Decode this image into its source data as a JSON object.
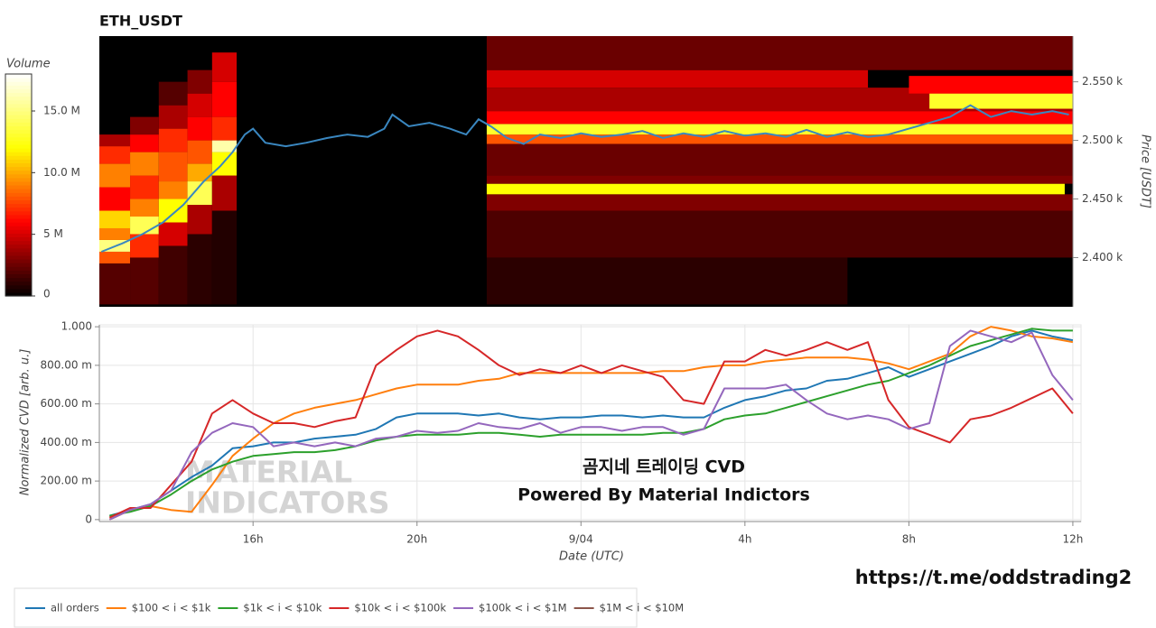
{
  "chart_data": [
    {
      "type": "heatmap",
      "title": "ETH_USDT",
      "colorbar_label": "Volume",
      "ylabel": "Price [USDT]",
      "colormap": "hot",
      "zlim": [
        0,
        18
      ],
      "zticks": [
        0,
        {
          "value": 5,
          "label": "5 M"
        },
        {
          "value": 10,
          "label": "10.0 M"
        },
        {
          "value": 15,
          "label": "15.0 M"
        }
      ],
      "xlim": [
        12.25,
        36.0
      ],
      "ylim": [
        2358,
        2589
      ],
      "yticks": [
        {
          "value": 2400,
          "label": "2.400 k"
        },
        {
          "value": 2450,
          "label": "2.450 k"
        },
        {
          "value": 2500,
          "label": "2.500 k"
        },
        {
          "value": 2550,
          "label": "2.550 k"
        }
      ],
      "cells": [
        {
          "x": [
            12.25,
            13.0
          ],
          "y": [
            2360,
            2395
          ],
          "value": 2
        },
        {
          "x": [
            12.25,
            13.0
          ],
          "y": [
            2395,
            2405
          ],
          "value": 8
        },
        {
          "x": [
            12.25,
            13.0
          ],
          "y": [
            2405,
            2415
          ],
          "value": 15
        },
        {
          "x": [
            12.25,
            13.0
          ],
          "y": [
            2415,
            2425
          ],
          "value": 9
        },
        {
          "x": [
            12.25,
            13.0
          ],
          "y": [
            2425,
            2440
          ],
          "value": 11
        },
        {
          "x": [
            12.25,
            13.0
          ],
          "y": [
            2440,
            2460
          ],
          "value": 6
        },
        {
          "x": [
            12.25,
            13.0
          ],
          "y": [
            2460,
            2480
          ],
          "value": 9
        },
        {
          "x": [
            12.25,
            13.0
          ],
          "y": [
            2480,
            2495
          ],
          "value": 7
        },
        {
          "x": [
            12.25,
            13.0
          ],
          "y": [
            2495,
            2505
          ],
          "value": 4
        },
        {
          "x": [
            13.0,
            13.7
          ],
          "y": [
            2360,
            2400
          ],
          "value": 2
        },
        {
          "x": [
            13.0,
            13.7
          ],
          "y": [
            2400,
            2420
          ],
          "value": 7
        },
        {
          "x": [
            13.0,
            13.7
          ],
          "y": [
            2420,
            2435
          ],
          "value": 14
        },
        {
          "x": [
            13.0,
            13.7
          ],
          "y": [
            2435,
            2450
          ],
          "value": 9
        },
        {
          "x": [
            13.0,
            13.7
          ],
          "y": [
            2450,
            2470
          ],
          "value": 7
        },
        {
          "x": [
            13.0,
            13.7
          ],
          "y": [
            2470,
            2490
          ],
          "value": 9
        },
        {
          "x": [
            13.0,
            13.7
          ],
          "y": [
            2490,
            2505
          ],
          "value": 6
        },
        {
          "x": [
            13.0,
            13.7
          ],
          "y": [
            2505,
            2520
          ],
          "value": 3
        },
        {
          "x": [
            13.7,
            14.4
          ],
          "y": [
            2360,
            2410
          ],
          "value": 1.5
        },
        {
          "x": [
            13.7,
            14.4
          ],
          "y": [
            2410,
            2430
          ],
          "value": 5
        },
        {
          "x": [
            13.7,
            14.4
          ],
          "y": [
            2430,
            2450
          ],
          "value": 12
        },
        {
          "x": [
            13.7,
            14.4
          ],
          "y": [
            2450,
            2465
          ],
          "value": 9
        },
        {
          "x": [
            13.7,
            14.4
          ],
          "y": [
            2465,
            2490
          ],
          "value": 8
        },
        {
          "x": [
            13.7,
            14.4
          ],
          "y": [
            2490,
            2510
          ],
          "value": 7
        },
        {
          "x": [
            13.7,
            14.4
          ],
          "y": [
            2510,
            2530
          ],
          "value": 4
        },
        {
          "x": [
            13.7,
            14.4
          ],
          "y": [
            2530,
            2550
          ],
          "value": 2
        },
        {
          "x": [
            14.4,
            15.0
          ],
          "y": [
            2360,
            2420
          ],
          "value": 1
        },
        {
          "x": [
            14.4,
            15.0
          ],
          "y": [
            2420,
            2445
          ],
          "value": 4
        },
        {
          "x": [
            14.4,
            15.0
          ],
          "y": [
            2445,
            2465
          ],
          "value": 14
        },
        {
          "x": [
            14.4,
            15.0
          ],
          "y": [
            2465,
            2480
          ],
          "value": 10
        },
        {
          "x": [
            14.4,
            15.0
          ],
          "y": [
            2480,
            2500
          ],
          "value": 8
        },
        {
          "x": [
            14.4,
            15.0
          ],
          "y": [
            2500,
            2520
          ],
          "value": 6
        },
        {
          "x": [
            14.4,
            15.0
          ],
          "y": [
            2520,
            2540
          ],
          "value": 5
        },
        {
          "x": [
            14.4,
            15.0
          ],
          "y": [
            2540,
            2560
          ],
          "value": 3
        },
        {
          "x": [
            15.0,
            15.6
          ],
          "y": [
            2360,
            2440
          ],
          "value": 0.8
        },
        {
          "x": [
            15.0,
            15.6
          ],
          "y": [
            2440,
            2470
          ],
          "value": 4
        },
        {
          "x": [
            15.0,
            15.6
          ],
          "y": [
            2470,
            2490
          ],
          "value": 12
        },
        {
          "x": [
            15.0,
            15.6
          ],
          "y": [
            2490,
            2500
          ],
          "value": 16
        },
        {
          "x": [
            15.0,
            15.6
          ],
          "y": [
            2500,
            2520
          ],
          "value": 7
        },
        {
          "x": [
            15.0,
            15.6
          ],
          "y": [
            2520,
            2550
          ],
          "value": 6
        },
        {
          "x": [
            15.0,
            15.6
          ],
          "y": [
            2550,
            2575
          ],
          "value": 5
        },
        {
          "x": [
            21.7,
            30.5
          ],
          "y": [
            2360,
            2400
          ],
          "value": 1
        },
        {
          "x": [
            21.7,
            36.0
          ],
          "y": [
            2400,
            2440
          ],
          "value": 1.8
        },
        {
          "x": [
            21.7,
            36.0
          ],
          "y": [
            2440,
            2454
          ],
          "value": 3
        },
        {
          "x": [
            21.7,
            35.8
          ],
          "y": [
            2454,
            2463
          ],
          "value": 12
        },
        {
          "x": [
            21.7,
            36.0
          ],
          "y": [
            2463,
            2470
          ],
          "value": 3
        },
        {
          "x": [
            21.7,
            36.0
          ],
          "y": [
            2470,
            2497
          ],
          "value": 2.5
        },
        {
          "x": [
            21.7,
            36.0
          ],
          "y": [
            2497,
            2505
          ],
          "value": 8
        },
        {
          "x": [
            21.7,
            36.0
          ],
          "y": [
            2505,
            2514
          ],
          "value": 13
        },
        {
          "x": [
            21.7,
            36.0
          ],
          "y": [
            2514,
            2525
          ],
          "value": 6
        },
        {
          "x": [
            21.7,
            36.0
          ],
          "y": [
            2525,
            2545
          ],
          "value": 4
        },
        {
          "x": [
            21.7,
            31.0
          ],
          "y": [
            2545,
            2560
          ],
          "value": 5
        },
        {
          "x": [
            21.7,
            36.0
          ],
          "y": [
            2560,
            2589
          ],
          "value": 2.5
        },
        {
          "x": [
            32.5,
            36.0
          ],
          "y": [
            2527,
            2540
          ],
          "value": 13
        },
        {
          "x": [
            32.0,
            36.0
          ],
          "y": [
            2540,
            2555
          ],
          "value": 6
        }
      ],
      "color": "#3a87c0",
      "x": [
        12.3,
        12.8,
        13.3,
        13.8,
        14.3,
        14.8,
        15.2,
        15.5,
        15.8,
        16.0,
        16.3,
        16.8,
        17.3,
        17.8,
        18.3,
        18.8,
        19.2,
        19.4,
        19.8,
        20.3,
        20.8,
        21.2,
        21.5,
        21.8,
        22.2,
        22.6,
        23.0,
        23.5,
        24.0,
        24.5,
        25.0,
        25.5,
        26.0,
        26.5,
        27.0,
        27.5,
        28.0,
        28.5,
        29.0,
        29.5,
        30.0,
        30.5,
        31.0,
        31.5,
        32.0,
        32.5,
        33.0,
        33.5,
        34.0,
        34.5,
        35.0,
        35.5,
        35.9
      ],
      "values": [
        2405,
        2412,
        2420,
        2430,
        2445,
        2465,
        2478,
        2490,
        2505,
        2510,
        2498,
        2495,
        2498,
        2502,
        2505,
        2503,
        2510,
        2522,
        2512,
        2515,
        2510,
        2505,
        2518,
        2512,
        2502,
        2497,
        2505,
        2502,
        2506,
        2503,
        2505,
        2508,
        2502,
        2506,
        2503,
        2508,
        2504,
        2506,
        2503,
        2509,
        2503,
        2507,
        2503,
        2505,
        2510,
        2515,
        2520,
        2530,
        2520,
        2525,
        2522,
        2525,
        2522
      ]
    },
    {
      "type": "line",
      "ylabel": "Normalized CVD [arb. u.]",
      "xlabel": "Date (UTC)",
      "grid": true,
      "xlim": [
        12.25,
        36.2
      ],
      "ylim": [
        -0.01,
        1.01
      ],
      "xticks": [
        {
          "value": 16,
          "label": "16h"
        },
        {
          "value": 20,
          "label": "20h"
        },
        {
          "value": 24,
          "label": "9/04"
        },
        {
          "value": 28,
          "label": "4h"
        },
        {
          "value": 32,
          "label": "8h"
        },
        {
          "value": 36,
          "label": "12h"
        }
      ],
      "yticks": [
        0,
        {
          "value": 0.2,
          "label": "200.00 m"
        },
        {
          "value": 0.4,
          "label": "400.00 m"
        },
        {
          "value": 0.6,
          "label": "600.00 m"
        },
        {
          "value": 0.8,
          "label": "800.00 m"
        },
        {
          "value": 1,
          "label": "1.000"
        }
      ],
      "annotations": [
        "곰지네 트레이딩 CVD",
        "Powered By Material Indictors"
      ],
      "watermark": [
        "MATERIAL",
        "INDICATORS"
      ],
      "x": [
        12.5,
        13,
        13.5,
        14,
        14.5,
        15,
        15.5,
        16,
        16.5,
        17,
        17.5,
        18,
        18.5,
        19,
        19.5,
        20,
        20.5,
        21,
        21.5,
        22,
        22.5,
        23,
        23.5,
        24,
        24.5,
        25,
        25.5,
        26,
        26.5,
        27,
        27.5,
        28,
        28.5,
        29,
        29.5,
        30,
        30.5,
        31,
        31.5,
        32,
        32.5,
        33,
        33.5,
        34,
        34.5,
        35,
        35.5,
        36
      ],
      "series": [
        {
          "name": "all orders",
          "color": "#1f77b4",
          "values": [
            0.02,
            0.05,
            0.08,
            0.15,
            0.22,
            0.28,
            0.37,
            0.38,
            0.4,
            0.4,
            0.42,
            0.43,
            0.44,
            0.47,
            0.53,
            0.55,
            0.55,
            0.55,
            0.54,
            0.55,
            0.53,
            0.52,
            0.53,
            0.53,
            0.54,
            0.54,
            0.53,
            0.54,
            0.53,
            0.53,
            0.58,
            0.62,
            0.64,
            0.67,
            0.68,
            0.72,
            0.73,
            0.76,
            0.79,
            0.74,
            0.78,
            0.82,
            0.86,
            0.9,
            0.95,
            0.98,
            0.95,
            0.93
          ]
        },
        {
          "name": "$100 < i < $1k",
          "color": "#ff7f0e",
          "values": [
            0.0,
            0.05,
            0.07,
            0.05,
            0.04,
            0.18,
            0.33,
            0.42,
            0.5,
            0.55,
            0.58,
            0.6,
            0.62,
            0.65,
            0.68,
            0.7,
            0.7,
            0.7,
            0.72,
            0.73,
            0.76,
            0.76,
            0.76,
            0.76,
            0.76,
            0.76,
            0.76,
            0.77,
            0.77,
            0.79,
            0.8,
            0.8,
            0.82,
            0.83,
            0.84,
            0.84,
            0.84,
            0.83,
            0.81,
            0.78,
            0.82,
            0.86,
            0.95,
            1.0,
            0.98,
            0.95,
            0.94,
            0.92
          ]
        },
        {
          "name": "$1k < i < $10k",
          "color": "#2ca02c",
          "values": [
            0.02,
            0.04,
            0.07,
            0.13,
            0.2,
            0.26,
            0.3,
            0.33,
            0.34,
            0.35,
            0.35,
            0.36,
            0.38,
            0.41,
            0.43,
            0.44,
            0.44,
            0.44,
            0.45,
            0.45,
            0.44,
            0.43,
            0.44,
            0.44,
            0.44,
            0.44,
            0.44,
            0.45,
            0.45,
            0.47,
            0.52,
            0.54,
            0.55,
            0.58,
            0.61,
            0.64,
            0.67,
            0.7,
            0.72,
            0.76,
            0.8,
            0.85,
            0.9,
            0.93,
            0.96,
            0.99,
            0.98,
            0.98
          ]
        },
        {
          "name": "$10k < i < $100k",
          "color": "#d62728",
          "values": [
            0.01,
            0.06,
            0.06,
            0.18,
            0.3,
            0.55,
            0.62,
            0.55,
            0.5,
            0.5,
            0.48,
            0.51,
            0.53,
            0.8,
            0.88,
            0.95,
            0.98,
            0.95,
            0.88,
            0.8,
            0.75,
            0.78,
            0.76,
            0.8,
            0.76,
            0.8,
            0.77,
            0.74,
            0.62,
            0.6,
            0.82,
            0.82,
            0.88,
            0.85,
            0.88,
            0.92,
            0.88,
            0.92,
            0.62,
            0.48,
            0.44,
            0.4,
            0.52,
            0.54,
            0.58,
            0.63,
            0.68,
            0.55
          ]
        },
        {
          "name": "$100k < i < $1M",
          "color": "#9467bd",
          "values": [
            0.0,
            0.05,
            0.08,
            0.15,
            0.35,
            0.45,
            0.5,
            0.48,
            0.38,
            0.4,
            0.38,
            0.4,
            0.38,
            0.42,
            0.43,
            0.46,
            0.45,
            0.46,
            0.5,
            0.48,
            0.47,
            0.5,
            0.45,
            0.48,
            0.48,
            0.46,
            0.48,
            0.48,
            0.44,
            0.47,
            0.68,
            0.68,
            0.68,
            0.7,
            0.62,
            0.55,
            0.52,
            0.54,
            0.52,
            0.47,
            0.5,
            0.9,
            0.98,
            0.95,
            0.92,
            0.97,
            0.75,
            0.62
          ]
        },
        {
          "name": "$1M < i < $10M",
          "color": "#8c564b",
          "values": [
            null,
            null,
            null,
            null,
            null,
            null,
            null,
            null,
            null,
            null,
            null,
            null,
            null,
            null,
            null,
            null,
            null,
            null,
            null,
            null,
            null,
            null,
            null,
            null,
            null,
            null,
            null,
            null,
            null,
            null,
            null,
            null,
            null,
            null,
            null,
            null,
            null,
            null,
            null,
            null,
            null,
            null,
            null,
            null,
            null,
            null,
            null,
            null
          ]
        }
      ]
    }
  ],
  "footer": "https://t.me/oddstrading2"
}
